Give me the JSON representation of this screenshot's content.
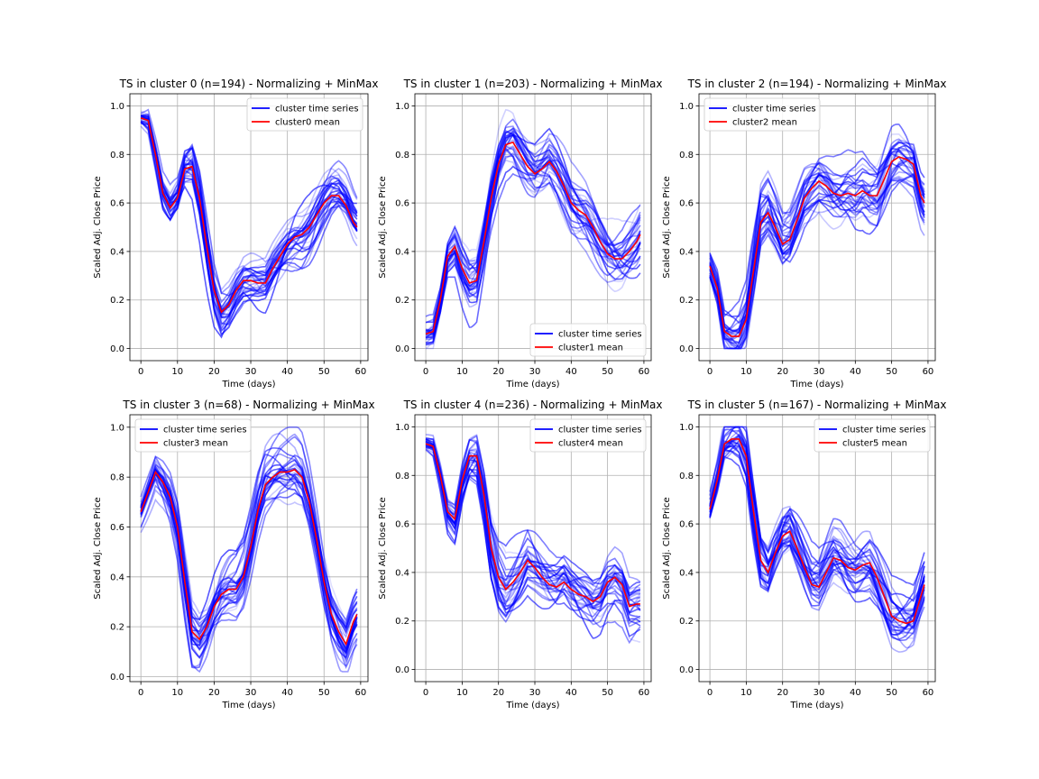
{
  "chart_data": [
    {
      "type": "line",
      "title": "TS in cluster 0 (n=194) - Normalizing + MinMax",
      "xlabel": "Time (days)",
      "ylabel": "Scaled Adj. Close Price",
      "xlim": [
        -3,
        62
      ],
      "ylim": [
        -0.05,
        1.05
      ],
      "xticks": [
        0,
        10,
        20,
        30,
        40,
        50,
        60
      ],
      "yticks": [
        0.0,
        0.2,
        0.4,
        0.6,
        0.8,
        1.0
      ],
      "grid": true,
      "legend_position": "upper right",
      "legend": [
        "cluster time series",
        "cluster0 mean"
      ],
      "series": [
        {
          "name": "cluster0 mean",
          "color": "#ff0000",
          "x": [
            0,
            2,
            4,
            6,
            8,
            10,
            12,
            14,
            16,
            18,
            20,
            22,
            24,
            26,
            28,
            30,
            32,
            34,
            36,
            38,
            40,
            42,
            44,
            46,
            48,
            50,
            52,
            54,
            56,
            58,
            59
          ],
          "y": [
            0.95,
            0.94,
            0.8,
            0.64,
            0.58,
            0.62,
            0.74,
            0.75,
            0.62,
            0.42,
            0.24,
            0.15,
            0.18,
            0.24,
            0.28,
            0.28,
            0.27,
            0.27,
            0.33,
            0.38,
            0.43,
            0.46,
            0.47,
            0.5,
            0.55,
            0.6,
            0.63,
            0.63,
            0.59,
            0.52,
            0.5
          ]
        }
      ],
      "member_series": {
        "name": "cluster time series",
        "color": "#0000ff",
        "count_drawn": 30,
        "min_y": 0.0,
        "max_y": 1.0
      }
    },
    {
      "type": "line",
      "title": "TS in cluster 1 (n=203) - Normalizing + MinMax",
      "xlabel": "Time (days)",
      "ylabel": "Scaled Adj. Close Price",
      "xlim": [
        -3,
        62
      ],
      "ylim": [
        -0.05,
        1.05
      ],
      "xticks": [
        0,
        10,
        20,
        30,
        40,
        50,
        60
      ],
      "yticks": [
        0.0,
        0.2,
        0.4,
        0.6,
        0.8,
        1.0
      ],
      "grid": true,
      "legend_position": "lower right",
      "legend": [
        "cluster time series",
        "cluster1 mean"
      ],
      "series": [
        {
          "name": "cluster1 mean",
          "color": "#ff0000",
          "x": [
            0,
            2,
            4,
            6,
            8,
            10,
            12,
            14,
            16,
            18,
            20,
            22,
            24,
            26,
            28,
            30,
            32,
            34,
            36,
            38,
            40,
            42,
            44,
            46,
            48,
            50,
            52,
            54,
            56,
            58,
            59
          ],
          "y": [
            0.06,
            0.07,
            0.2,
            0.38,
            0.42,
            0.33,
            0.27,
            0.28,
            0.44,
            0.62,
            0.76,
            0.84,
            0.85,
            0.8,
            0.75,
            0.72,
            0.74,
            0.77,
            0.73,
            0.67,
            0.6,
            0.57,
            0.55,
            0.5,
            0.44,
            0.39,
            0.37,
            0.37,
            0.4,
            0.44,
            0.47
          ]
        }
      ],
      "member_series": {
        "name": "cluster time series",
        "color": "#0000ff",
        "count_drawn": 30,
        "min_y": 0.0,
        "max_y": 1.0
      }
    },
    {
      "type": "line",
      "title": "TS in cluster 2 (n=194) - Normalizing + MinMax",
      "xlabel": "Time (days)",
      "ylabel": "Scaled Adj. Close Price",
      "xlim": [
        -3,
        62
      ],
      "ylim": [
        -0.05,
        1.05
      ],
      "xticks": [
        0,
        10,
        20,
        30,
        40,
        50,
        60
      ],
      "yticks": [
        0.0,
        0.2,
        0.4,
        0.6,
        0.8,
        1.0
      ],
      "grid": true,
      "legend_position": "upper left",
      "legend": [
        "cluster time series",
        "cluster2 mean"
      ],
      "series": [
        {
          "name": "cluster2 mean",
          "color": "#ff0000",
          "x": [
            0,
            2,
            4,
            6,
            8,
            10,
            12,
            14,
            16,
            18,
            20,
            22,
            24,
            26,
            28,
            30,
            32,
            34,
            36,
            38,
            40,
            42,
            44,
            46,
            48,
            50,
            52,
            54,
            56,
            58,
            59
          ],
          "y": [
            0.34,
            0.25,
            0.07,
            0.05,
            0.05,
            0.12,
            0.32,
            0.52,
            0.56,
            0.5,
            0.43,
            0.45,
            0.53,
            0.62,
            0.66,
            0.69,
            0.67,
            0.64,
            0.63,
            0.64,
            0.63,
            0.65,
            0.63,
            0.63,
            0.7,
            0.77,
            0.79,
            0.78,
            0.76,
            0.63,
            0.6
          ]
        }
      ],
      "member_series": {
        "name": "cluster time series",
        "color": "#0000ff",
        "count_drawn": 30,
        "min_y": 0.0,
        "max_y": 1.0
      }
    },
    {
      "type": "line",
      "title": "TS in cluster 3 (n=68) - Normalizing + MinMax",
      "xlabel": "Time (days)",
      "ylabel": "Scaled Adj. Close Price",
      "xlim": [
        -3,
        62
      ],
      "ylim": [
        -0.02,
        1.05
      ],
      "xticks": [
        0,
        10,
        20,
        30,
        40,
        50,
        60
      ],
      "yticks": [
        0.0,
        0.2,
        0.4,
        0.6,
        0.8,
        1.0
      ],
      "grid": true,
      "legend_position": "upper left",
      "legend": [
        "cluster time series",
        "cluster3 mean"
      ],
      "series": [
        {
          "name": "cluster3 mean",
          "color": "#ff0000",
          "x": [
            0,
            2,
            4,
            6,
            8,
            10,
            12,
            14,
            16,
            18,
            20,
            22,
            24,
            26,
            28,
            30,
            32,
            34,
            36,
            38,
            40,
            42,
            44,
            46,
            48,
            50,
            52,
            54,
            56,
            58,
            59
          ],
          "y": [
            0.66,
            0.74,
            0.82,
            0.78,
            0.72,
            0.6,
            0.38,
            0.18,
            0.15,
            0.2,
            0.28,
            0.33,
            0.35,
            0.35,
            0.4,
            0.52,
            0.67,
            0.77,
            0.8,
            0.82,
            0.82,
            0.83,
            0.8,
            0.7,
            0.55,
            0.38,
            0.25,
            0.18,
            0.13,
            0.22,
            0.25
          ]
        }
      ],
      "member_series": {
        "name": "cluster time series",
        "color": "#0000ff",
        "count_drawn": 30,
        "min_y": 0.02,
        "max_y": 1.0
      }
    },
    {
      "type": "line",
      "title": "TS in cluster 4 (n=236) - Normalizing + MinMax",
      "xlabel": "Time (days)",
      "ylabel": "Scaled Adj. Close Price",
      "xlim": [
        -3,
        62
      ],
      "ylim": [
        -0.05,
        1.05
      ],
      "xticks": [
        0,
        10,
        20,
        30,
        40,
        50,
        60
      ],
      "yticks": [
        0.0,
        0.2,
        0.4,
        0.6,
        0.8,
        1.0
      ],
      "grid": true,
      "legend_position": "upper right",
      "legend": [
        "cluster time series",
        "cluster4 mean"
      ],
      "series": [
        {
          "name": "cluster4 mean",
          "color": "#ff0000",
          "x": [
            0,
            2,
            4,
            6,
            8,
            10,
            12,
            14,
            16,
            18,
            20,
            22,
            24,
            26,
            28,
            30,
            32,
            34,
            36,
            38,
            40,
            42,
            44,
            46,
            48,
            50,
            52,
            54,
            56,
            58,
            59
          ],
          "y": [
            0.93,
            0.92,
            0.8,
            0.65,
            0.62,
            0.78,
            0.88,
            0.88,
            0.72,
            0.5,
            0.38,
            0.33,
            0.36,
            0.4,
            0.45,
            0.42,
            0.38,
            0.35,
            0.34,
            0.36,
            0.33,
            0.31,
            0.3,
            0.28,
            0.3,
            0.36,
            0.38,
            0.35,
            0.26,
            0.27,
            0.27
          ]
        }
      ],
      "member_series": {
        "name": "cluster time series",
        "color": "#0000ff",
        "count_drawn": 30,
        "min_y": 0.02,
        "max_y": 1.0
      }
    },
    {
      "type": "line",
      "title": "TS in cluster 5 (n=167) - Normalizing + MinMax",
      "xlabel": "Time (days)",
      "ylabel": "Scaled Adj. Close Price",
      "xlim": [
        -3,
        62
      ],
      "ylim": [
        -0.05,
        1.05
      ],
      "xticks": [
        0,
        10,
        20,
        30,
        40,
        50,
        60
      ],
      "yticks": [
        0.0,
        0.2,
        0.4,
        0.6,
        0.8,
        1.0
      ],
      "grid": true,
      "legend_position": "upper right",
      "legend": [
        "cluster time series",
        "cluster5 mean"
      ],
      "series": [
        {
          "name": "cluster5 mean",
          "color": "#ff0000",
          "x": [
            0,
            2,
            4,
            6,
            8,
            10,
            12,
            14,
            16,
            18,
            20,
            22,
            24,
            26,
            28,
            30,
            32,
            34,
            36,
            38,
            40,
            42,
            44,
            46,
            48,
            50,
            52,
            54,
            56,
            58,
            59
          ],
          "y": [
            0.66,
            0.78,
            0.93,
            0.95,
            0.95,
            0.88,
            0.65,
            0.45,
            0.4,
            0.48,
            0.55,
            0.57,
            0.5,
            0.42,
            0.35,
            0.34,
            0.4,
            0.46,
            0.45,
            0.42,
            0.41,
            0.43,
            0.44,
            0.38,
            0.3,
            0.22,
            0.2,
            0.19,
            0.2,
            0.3,
            0.35
          ]
        }
      ],
      "member_series": {
        "name": "cluster time series",
        "color": "#0000ff",
        "count_drawn": 30,
        "min_y": 0.0,
        "max_y": 1.0
      }
    }
  ]
}
